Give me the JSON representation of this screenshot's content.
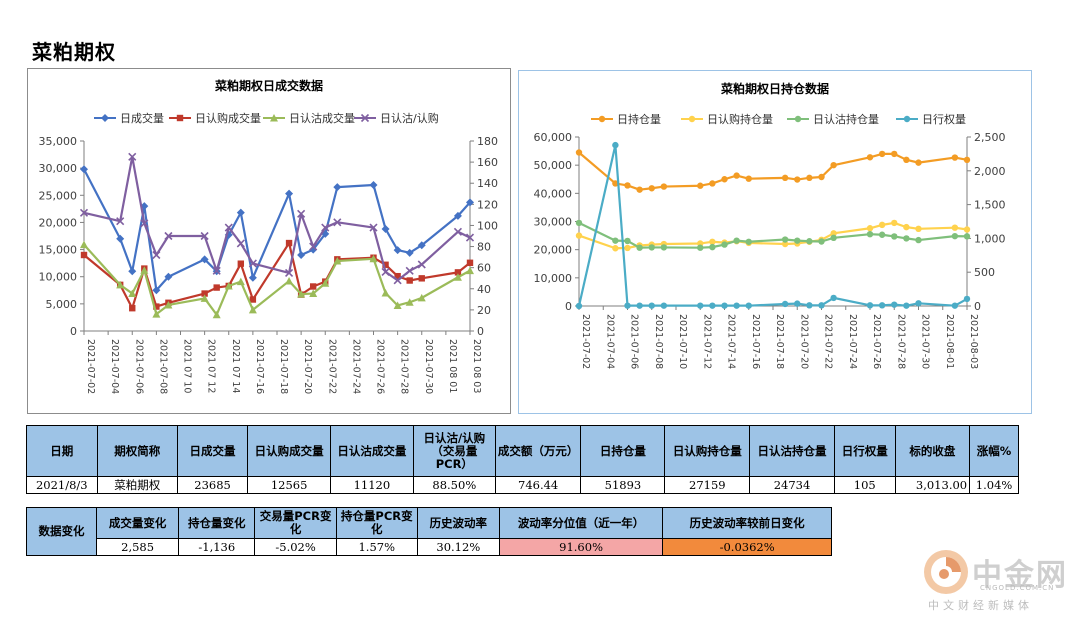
{
  "page": {
    "title": "菜粕期权"
  },
  "chart_data": [
    {
      "type": "line",
      "title": "菜粕期权日成交数据",
      "x": [
        "2021-07-02",
        "2021-07-05",
        "2021-07-06",
        "2021-07-07",
        "2021-07-08",
        "2021-07-09",
        "2021-07-12",
        "2021-07-13",
        "2021-07-14",
        "2021-07-15",
        "2021-07-16",
        "2021-07-19",
        "2021-07-20",
        "2021-07-21",
        "2021-07-22",
        "2021-07-23",
        "2021-07-26",
        "2021-07-27",
        "2021-07-28",
        "2021-07-29",
        "2021-07-30",
        "2021-08-02",
        "2021-08-03"
      ],
      "x_tick_labels": [
        "2021-07-02",
        "2021-07-04",
        "2021-07-06",
        "2021-07-08",
        "2021 07 10",
        "2021 07 12",
        "2021 07 14",
        "2021-07-16",
        "2021-07-18",
        "2021-07-20",
        "2021-07-22",
        "2021-07-24",
        "2021-07-26",
        "2021-07-28",
        "2021-07-30",
        "2021 08 01",
        "2021 08 03"
      ],
      "y_left": {
        "min": 0,
        "max": 35000,
        "ticks": [
          "0",
          "5,000",
          "10,000",
          "15,000",
          "20,000",
          "25,000",
          "30,000",
          "35,000"
        ]
      },
      "y_right": {
        "min": 0,
        "max": 180,
        "ticks": [
          "0",
          "20",
          "40",
          "60",
          "80",
          "100",
          "120",
          "140",
          "160",
          "180"
        ]
      },
      "legend_position": "top",
      "series": [
        {
          "name": "日成交量",
          "axis": "left",
          "color": "#4472c4",
          "marker": "diamond",
          "values": [
            29800,
            17000,
            11000,
            23000,
            7500,
            10000,
            13200,
            11000,
            17700,
            21800,
            9800,
            25300,
            14000,
            15000,
            17900,
            26500,
            26900,
            18800,
            14900,
            14400,
            15800,
            21200,
            23700
          ]
        },
        {
          "name": "日认购成交量",
          "axis": "left",
          "color": "#c0392b",
          "marker": "square",
          "values": [
            14000,
            8500,
            4200,
            11500,
            4500,
            5200,
            6900,
            8000,
            8300,
            12400,
            5800,
            16200,
            6700,
            8200,
            9100,
            13200,
            13500,
            12200,
            10100,
            9300,
            9700,
            10800,
            12565
          ]
        },
        {
          "name": "日认沽成交量",
          "axis": "left",
          "color": "#9bbb59",
          "marker": "triangle",
          "values": [
            15900,
            8500,
            6900,
            11200,
            3100,
            4800,
            6000,
            3000,
            8300,
            9100,
            3900,
            9200,
            6800,
            6900,
            8800,
            12900,
            13300,
            7000,
            4700,
            5300,
            6100,
            9900,
            11120
          ]
        },
        {
          "name": "日认沽/认购",
          "axis": "right",
          "color": "#7f5fa0",
          "marker": "x",
          "values": [
            112,
            104,
            165,
            102,
            72,
            90,
            90,
            57,
            98,
            83,
            64,
            55,
            111,
            80,
            98,
            103,
            98,
            56,
            48,
            57,
            63,
            94,
            88.5
          ]
        }
      ]
    },
    {
      "type": "line",
      "title": "菜粕期权日持仓数据",
      "x": [
        "2021-07-02",
        "2021-07-05",
        "2021-07-06",
        "2021-07-07",
        "2021-07-08",
        "2021-07-09",
        "2021-07-12",
        "2021-07-13",
        "2021-07-14",
        "2021-07-15",
        "2021-07-16",
        "2021-07-19",
        "2021-07-20",
        "2021-07-21",
        "2021-07-22",
        "2021-07-23",
        "2021-07-26",
        "2021-07-27",
        "2021-07-28",
        "2021-07-29",
        "2021-07-30",
        "2021-08-02",
        "2021-08-03"
      ],
      "x_tick_labels": [
        "2021-07-02",
        "2021-07-04",
        "2021-07-06",
        "2021-07-08",
        "2021-07-10",
        "2021-07-12",
        "2021-07-14",
        "2021-07-16",
        "2021-07-18",
        "2021-07-20",
        "2021-07-22",
        "2021-07-24",
        "2021-07-26",
        "2021-07-28",
        "2021-07-30",
        "2021-08-01",
        "2021-08-03"
      ],
      "y_left": {
        "min": 0,
        "max": 60000,
        "ticks": [
          "0",
          "10,000",
          "20,000",
          "30,000",
          "40,000",
          "50,000",
          "60,000"
        ]
      },
      "y_right": {
        "min": 0,
        "max": 2500,
        "ticks": [
          "0",
          "500",
          "1,000",
          "1,500",
          "2,000",
          "2,500"
        ]
      },
      "legend_position": "top",
      "series": [
        {
          "name": "日持仓量",
          "axis": "left",
          "color": "#f39c24",
          "marker": "circle",
          "values": [
            54500,
            43500,
            42800,
            41300,
            41800,
            42400,
            42700,
            43500,
            45000,
            46300,
            45200,
            45500,
            44900,
            45500,
            45800,
            50000,
            52800,
            54000,
            54000,
            51900,
            50900,
            52700,
            51893
          ]
        },
        {
          "name": "日认购持仓量",
          "axis": "left",
          "color": "#ffd24d",
          "marker": "circle",
          "values": [
            25000,
            20500,
            20600,
            21500,
            21800,
            22000,
            22200,
            22800,
            22500,
            23000,
            22400,
            22000,
            22200,
            22800,
            23500,
            25800,
            27600,
            28800,
            29500,
            28000,
            27400,
            27800,
            27159
          ]
        },
        {
          "name": "日认沽持仓量",
          "axis": "left",
          "color": "#7fbf7b",
          "marker": "circle",
          "values": [
            29500,
            23200,
            23100,
            20700,
            20800,
            20800,
            20700,
            20900,
            21800,
            23200,
            22800,
            23600,
            23200,
            23000,
            22900,
            24200,
            25500,
            25300,
            24700,
            24000,
            23400,
            24800,
            24734
          ]
        },
        {
          "name": "日行权量",
          "axis": "right",
          "color": "#4bacc6",
          "marker": "circle",
          "values": [
            0,
            2380,
            5,
            5,
            5,
            5,
            5,
            5,
            5,
            5,
            5,
            30,
            35,
            10,
            10,
            120,
            10,
            10,
            20,
            5,
            40,
            5,
            105
          ]
        }
      ]
    }
  ],
  "table1": {
    "headers": [
      "日期",
      "期权简称",
      "日成交量",
      "日认购成交量",
      "日认沽成交量",
      "日认沽/认购（交易量PCR）",
      "成交额（万元）",
      "日持仓量",
      "日认购持仓量",
      "日认沽持仓量",
      "日行权量",
      "标的收盘",
      "涨幅%"
    ],
    "row": [
      "2021/8/3",
      "菜粕期权",
      "23685",
      "12565",
      "11120",
      "88.50%",
      "746.44",
      "51893",
      "27159",
      "24734",
      "105",
      "3,013.00",
      "1.04%"
    ]
  },
  "table2": {
    "row_header": "数据变化",
    "headers": [
      "成交量变化",
      "持仓量变化",
      "交易量PCR变化",
      "持仓量PCR变化",
      "历史波动率",
      "波动率分位值（近一年）",
      "历史波动率较前日变化"
    ],
    "row": [
      "2,585",
      "-1,136",
      "-5.02%",
      "1.57%",
      "30.12%",
      "91.60%",
      "-0.0362%"
    ]
  },
  "watermark": {
    "name": "中金网",
    "url": "CNGOLD.COM.CN",
    "slogan": "中文财经新媒体"
  }
}
